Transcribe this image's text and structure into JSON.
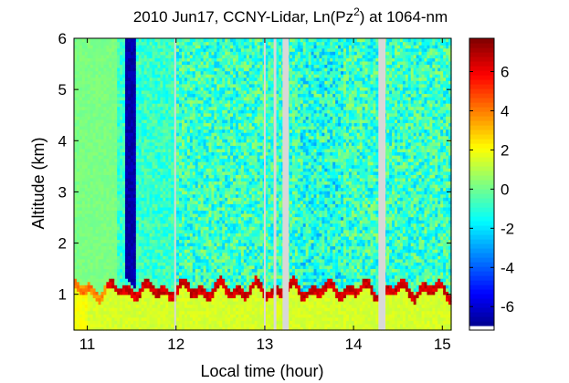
{
  "chart_data": {
    "type": "heatmap",
    "title": {
      "prefix": "2010 Jun17, CCNY-Lidar, Ln(Pz",
      "superscript": "2",
      "suffix": ") at 1064-nm"
    },
    "xlabel": "Local time (hour)",
    "ylabel": "Altitude (km)",
    "xlim": [
      10.85,
      15.1
    ],
    "ylim": [
      0.3,
      6.0
    ],
    "x_ticks": [
      11,
      12,
      13,
      14,
      15
    ],
    "x_tick_labels": [
      "11",
      "12",
      "13",
      "14",
      "15"
    ],
    "y_ticks": [
      1,
      2,
      3,
      4,
      5,
      6
    ],
    "y_tick_labels": [
      "1",
      "2",
      "3",
      "4",
      "5",
      "6"
    ],
    "colorbar": {
      "range": [
        -7.2,
        7.7
      ],
      "ticks": [
        -6,
        -4,
        -2,
        0,
        2,
        4,
        6
      ],
      "tick_labels": [
        "-6",
        "-4",
        "-2",
        "0",
        "2",
        "4",
        "6"
      ],
      "colormap": "jet"
    },
    "features": {
      "boundary_layer_top_km_range": [
        1.0,
        1.35
      ],
      "boundary_layer_value": 6.5,
      "below_layer_value": 1.5,
      "background_value": -0.8,
      "cloud_band_hours": [
        11.42,
        11.55
      ],
      "cloud_value": -7.0,
      "data_gaps_hours": [
        [
          11.98,
          12.0
        ],
        [
          12.99,
          13.01
        ],
        [
          13.1,
          13.13
        ],
        [
          13.2,
          13.27
        ],
        [
          14.28,
          14.36
        ]
      ]
    },
    "colors": {
      "gap": "#d8d8d8",
      "axis": "#000000",
      "colorbar_under": "#ffffff"
    }
  }
}
